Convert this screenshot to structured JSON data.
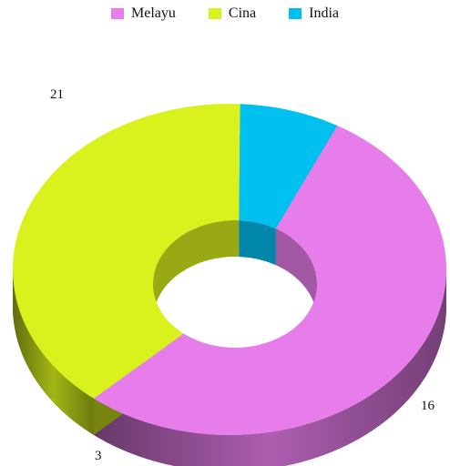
{
  "chart_data": {
    "type": "pie",
    "style": "3d-donut",
    "legend_position": "top",
    "series": [
      {
        "name": "Melayu",
        "value": 21,
        "color": "#E77DEB"
      },
      {
        "name": "Cina",
        "value": 16,
        "color": "#D9F21D"
      },
      {
        "name": "India",
        "value": 3,
        "color": "#00C0F0"
      }
    ],
    "data_labels": [
      "21",
      "16",
      "3"
    ]
  }
}
